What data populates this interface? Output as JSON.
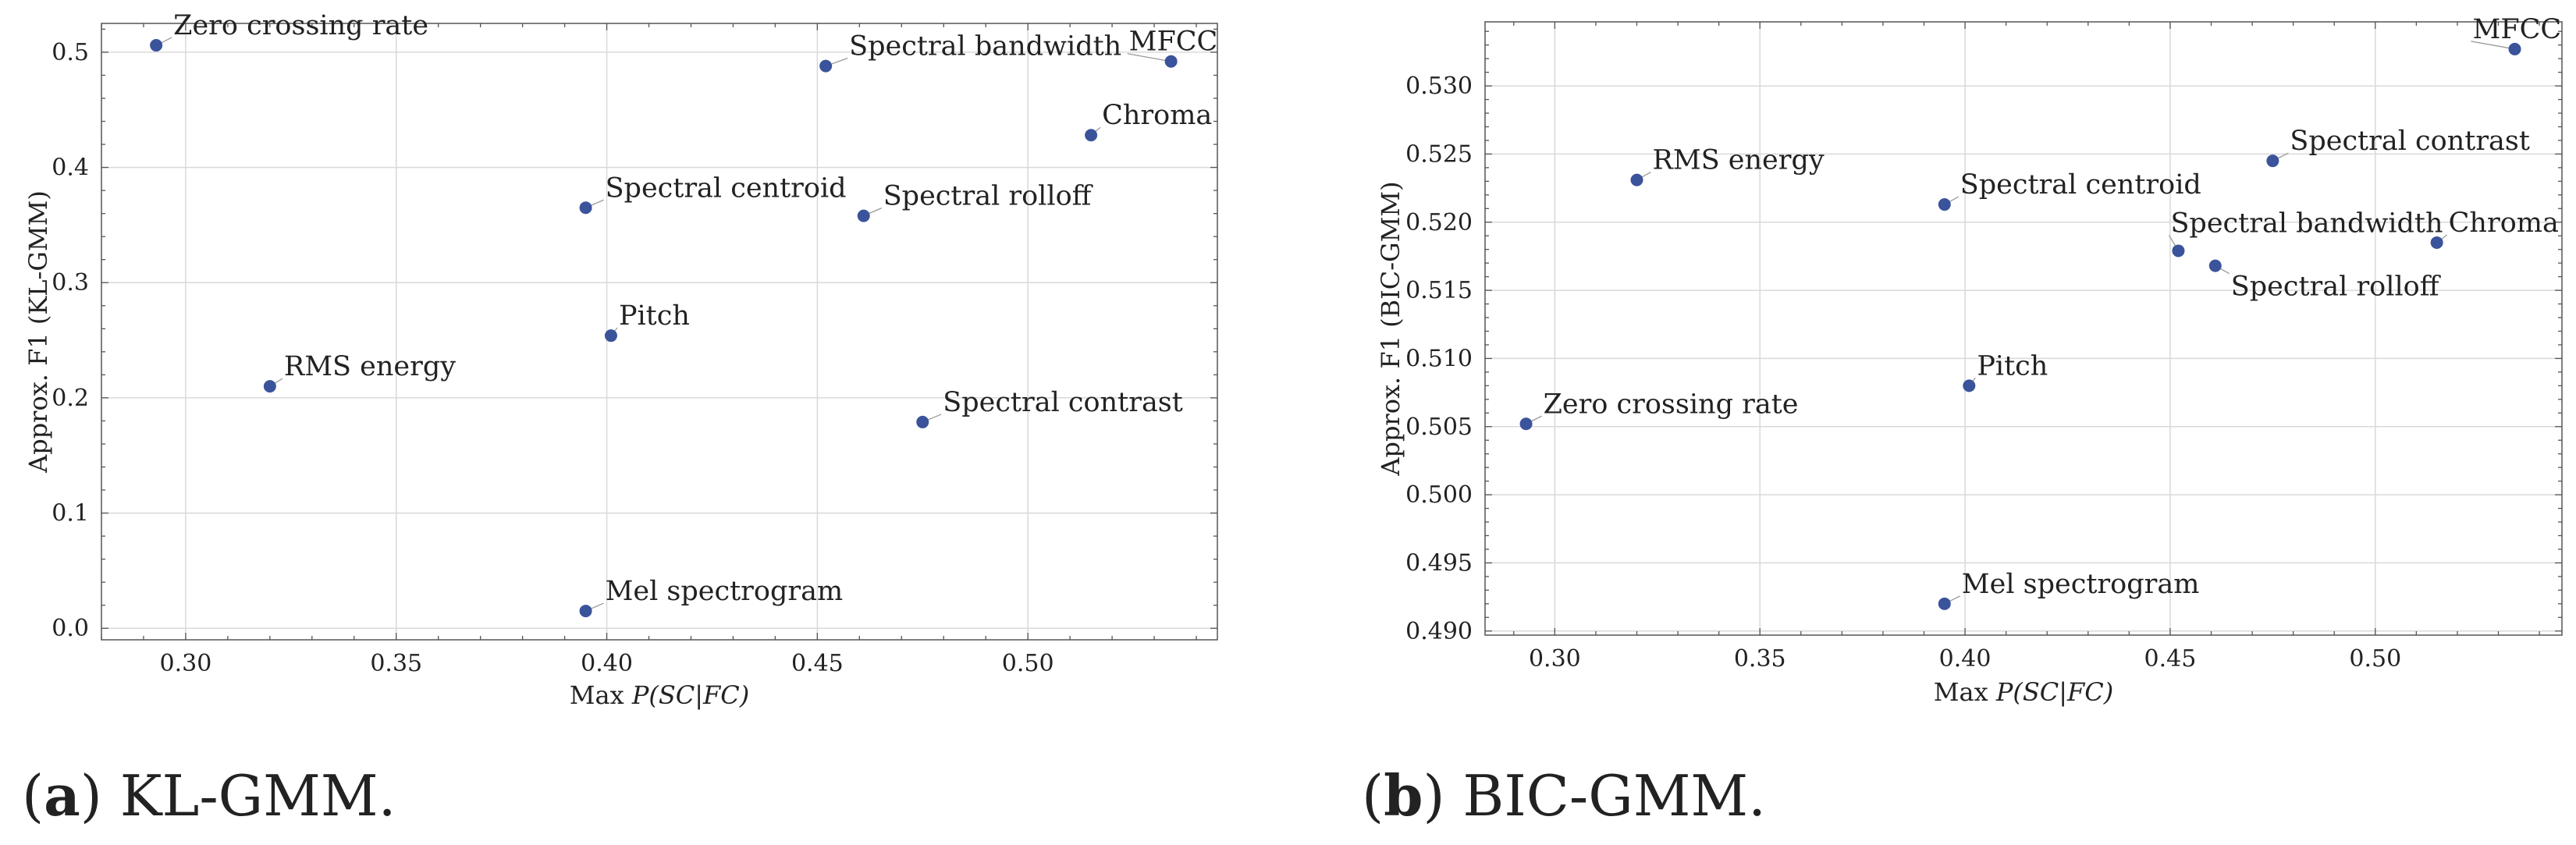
{
  "colors": {
    "marker": "#3a539b",
    "grid": "#d9d9d9",
    "axis": "#555555",
    "leader": "#9a9a9a"
  },
  "captions": [
    {
      "letter": "a",
      "text": "KL-GMM."
    },
    {
      "letter": "b",
      "text": "BIC-GMM."
    }
  ],
  "chart_data": [
    {
      "type": "scatter",
      "title": "",
      "xlabel_prefix": "Max ",
      "xlabel_math": "P(SC|FC)",
      "ylabel": "Approx. F1 (KL-GMM)",
      "xlim": [
        0.28,
        0.545
      ],
      "ylim": [
        -0.01,
        0.525
      ],
      "xticks": [
        0.3,
        0.35,
        0.4,
        0.45,
        0.5
      ],
      "yticks": [
        0.0,
        0.1,
        0.2,
        0.3,
        0.4,
        0.5
      ],
      "xtick_labels": [
        "0.30",
        "0.35",
        "0.40",
        "0.45",
        "0.50"
      ],
      "ytick_labels": [
        "0.0",
        "0.1",
        "0.2",
        "0.3",
        "0.4",
        "0.5"
      ],
      "grid": true,
      "points": [
        {
          "label": "Zero crossing rate",
          "x": 0.293,
          "y": 0.506
        },
        {
          "label": "Spectral bandwidth",
          "x": 0.452,
          "y": 0.488
        },
        {
          "label": "MFCC",
          "x": 0.534,
          "y": 0.492
        },
        {
          "label": "Chroma",
          "x": 0.515,
          "y": 0.428
        },
        {
          "label": "Spectral centroid",
          "x": 0.395,
          "y": 0.365
        },
        {
          "label": "Spectral rolloff",
          "x": 0.461,
          "y": 0.358
        },
        {
          "label": "Pitch",
          "x": 0.401,
          "y": 0.254
        },
        {
          "label": "RMS energy",
          "x": 0.32,
          "y": 0.21
        },
        {
          "label": "Spectral contrast",
          "x": 0.475,
          "y": 0.179
        },
        {
          "label": "Mel spectrogram",
          "x": 0.395,
          "y": 0.015
        }
      ]
    },
    {
      "type": "scatter",
      "title": "",
      "xlabel_prefix": "Max ",
      "xlabel_math": "P(SC|FC)",
      "ylabel": "Approx. F1 (BIC-GMM)",
      "xlim": [
        0.283,
        0.5455
      ],
      "ylim": [
        0.4897,
        0.5347
      ],
      "xticks": [
        0.3,
        0.35,
        0.4,
        0.45,
        0.5
      ],
      "yticks": [
        0.49,
        0.495,
        0.5,
        0.505,
        0.51,
        0.515,
        0.52,
        0.525,
        0.53
      ],
      "xtick_labels": [
        "0.30",
        "0.35",
        "0.40",
        "0.45",
        "0.50"
      ],
      "ytick_labels": [
        "0.490",
        "0.495",
        "0.500",
        "0.505",
        "0.510",
        "0.515",
        "0.520",
        "0.525",
        "0.530"
      ],
      "grid": true,
      "points": [
        {
          "label": "MFCC",
          "x": 0.534,
          "y": 0.5327
        },
        {
          "label": "Spectral contrast",
          "x": 0.475,
          "y": 0.5245
        },
        {
          "label": "RMS energy",
          "x": 0.32,
          "y": 0.5231
        },
        {
          "label": "Spectral centroid",
          "x": 0.395,
          "y": 0.5213
        },
        {
          "label": "Spectral bandwidth",
          "x": 0.452,
          "y": 0.5179
        },
        {
          "label": "Chroma",
          "x": 0.515,
          "y": 0.5185
        },
        {
          "label": "Spectral rolloff",
          "x": 0.461,
          "y": 0.5168
        },
        {
          "label": "Pitch",
          "x": 0.401,
          "y": 0.508
        },
        {
          "label": "Zero crossing rate",
          "x": 0.293,
          "y": 0.5052
        },
        {
          "label": "Mel spectrogram",
          "x": 0.395,
          "y": 0.492
        }
      ]
    }
  ]
}
